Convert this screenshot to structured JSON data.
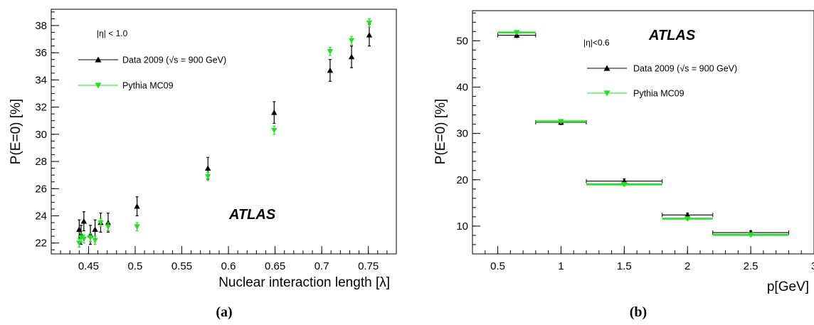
{
  "chart_data": [
    {
      "type": "scatter",
      "panel_label": "(a)",
      "xlabel": "Nuclear interaction length [λ]",
      "ylabel": "P(E=0) [%]",
      "xlim": [
        0.41,
        0.78
      ],
      "ylim": [
        21.2,
        39.2
      ],
      "x_ticks": [
        0.45,
        0.5,
        0.55,
        0.6,
        0.65,
        0.7,
        0.75
      ],
      "x_tick_labels": [
        "0.45",
        "0.5",
        "0.55",
        "0.6",
        "0.65",
        "0.7",
        "0.75"
      ],
      "y_ticks": [
        22,
        24,
        26,
        28,
        30,
        32,
        34,
        36,
        38
      ],
      "y_tick_labels": [
        "22",
        "24",
        "26",
        "28",
        "30",
        "32",
        "34",
        "36",
        "38"
      ],
      "annotation": "|η| < 1.0",
      "atlas_label": "ATLAS",
      "legend_position": "top-left",
      "series": [
        {
          "name": "Data 2009 (√s = 900 GeV)",
          "marker": "triangle-up",
          "color": "#000000",
          "x": [
            0.44,
            0.442,
            0.445,
            0.452,
            0.457,
            0.463,
            0.471,
            0.502,
            0.578,
            0.649,
            0.709,
            0.732,
            0.751
          ],
          "y": [
            23.0,
            22.6,
            23.6,
            22.6,
            23.0,
            23.5,
            23.5,
            24.7,
            27.5,
            31.6,
            34.7,
            35.7,
            37.3
          ],
          "err": [
            0.7,
            0.7,
            0.7,
            0.7,
            0.7,
            0.7,
            0.7,
            0.7,
            0.8,
            0.8,
            0.8,
            0.8,
            0.8
          ]
        },
        {
          "name": "Pythia MC09",
          "marker": "triangle-down",
          "color": "#22e022",
          "x": [
            0.44,
            0.442,
            0.445,
            0.452,
            0.457,
            0.463,
            0.471,
            0.502,
            0.578,
            0.649,
            0.709,
            0.732,
            0.751
          ],
          "y": [
            22.0,
            22.4,
            22.3,
            22.4,
            22.2,
            23.5,
            23.2,
            23.2,
            26.9,
            30.3,
            36.1,
            36.9,
            38.2
          ],
          "err": [
            0.3,
            0.3,
            0.3,
            0.3,
            0.3,
            0.3,
            0.3,
            0.3,
            0.3,
            0.3,
            0.3,
            0.3,
            0.3
          ]
        }
      ]
    },
    {
      "type": "scatter",
      "panel_label": "(b)",
      "xlabel": "p[GeV]",
      "ylabel": "P(E=0) [%]",
      "xlim": [
        0.3,
        3.0
      ],
      "ylim": [
        4.0,
        56.5
      ],
      "x_ticks": [
        0.5,
        1.0,
        1.5,
        2.0,
        2.5,
        3.0
      ],
      "x_tick_labels": [
        "0.5",
        "1",
        "1.5",
        "2",
        "2.5",
        "3"
      ],
      "y_ticks": [
        10,
        20,
        30,
        40,
        50
      ],
      "y_tick_labels": [
        "10",
        "20",
        "30",
        "40",
        "50"
      ],
      "annotation": "|η|<0.6",
      "atlas_label": "ATLAS",
      "legend_position": "top-right",
      "series": [
        {
          "name": "Data 2009 (√s = 900 GeV)",
          "marker": "triangle-up",
          "color": "#000000",
          "x": [
            0.65,
            1.0,
            1.5,
            2.0,
            2.5
          ],
          "xlow": [
            0.5,
            0.8,
            1.2,
            1.8,
            2.2
          ],
          "xhigh": [
            0.8,
            1.2,
            1.8,
            2.2,
            2.8
          ],
          "y": [
            51.2,
            32.4,
            19.7,
            12.4,
            8.6
          ],
          "err": [
            0.5,
            0.5,
            0.5,
            0.4,
            0.4
          ]
        },
        {
          "name": "Pythia MC09",
          "marker": "triangle-down",
          "color": "#22e022",
          "x": [
            0.65,
            1.0,
            1.5,
            2.0,
            2.5
          ],
          "xlow": [
            0.5,
            0.8,
            1.2,
            1.8,
            2.2
          ],
          "xhigh": [
            0.8,
            1.2,
            1.8,
            2.2,
            2.8
          ],
          "y": [
            51.8,
            32.6,
            19.0,
            11.6,
            8.1
          ],
          "err": [
            0.3,
            0.3,
            0.3,
            0.3,
            0.3
          ]
        }
      ]
    }
  ]
}
